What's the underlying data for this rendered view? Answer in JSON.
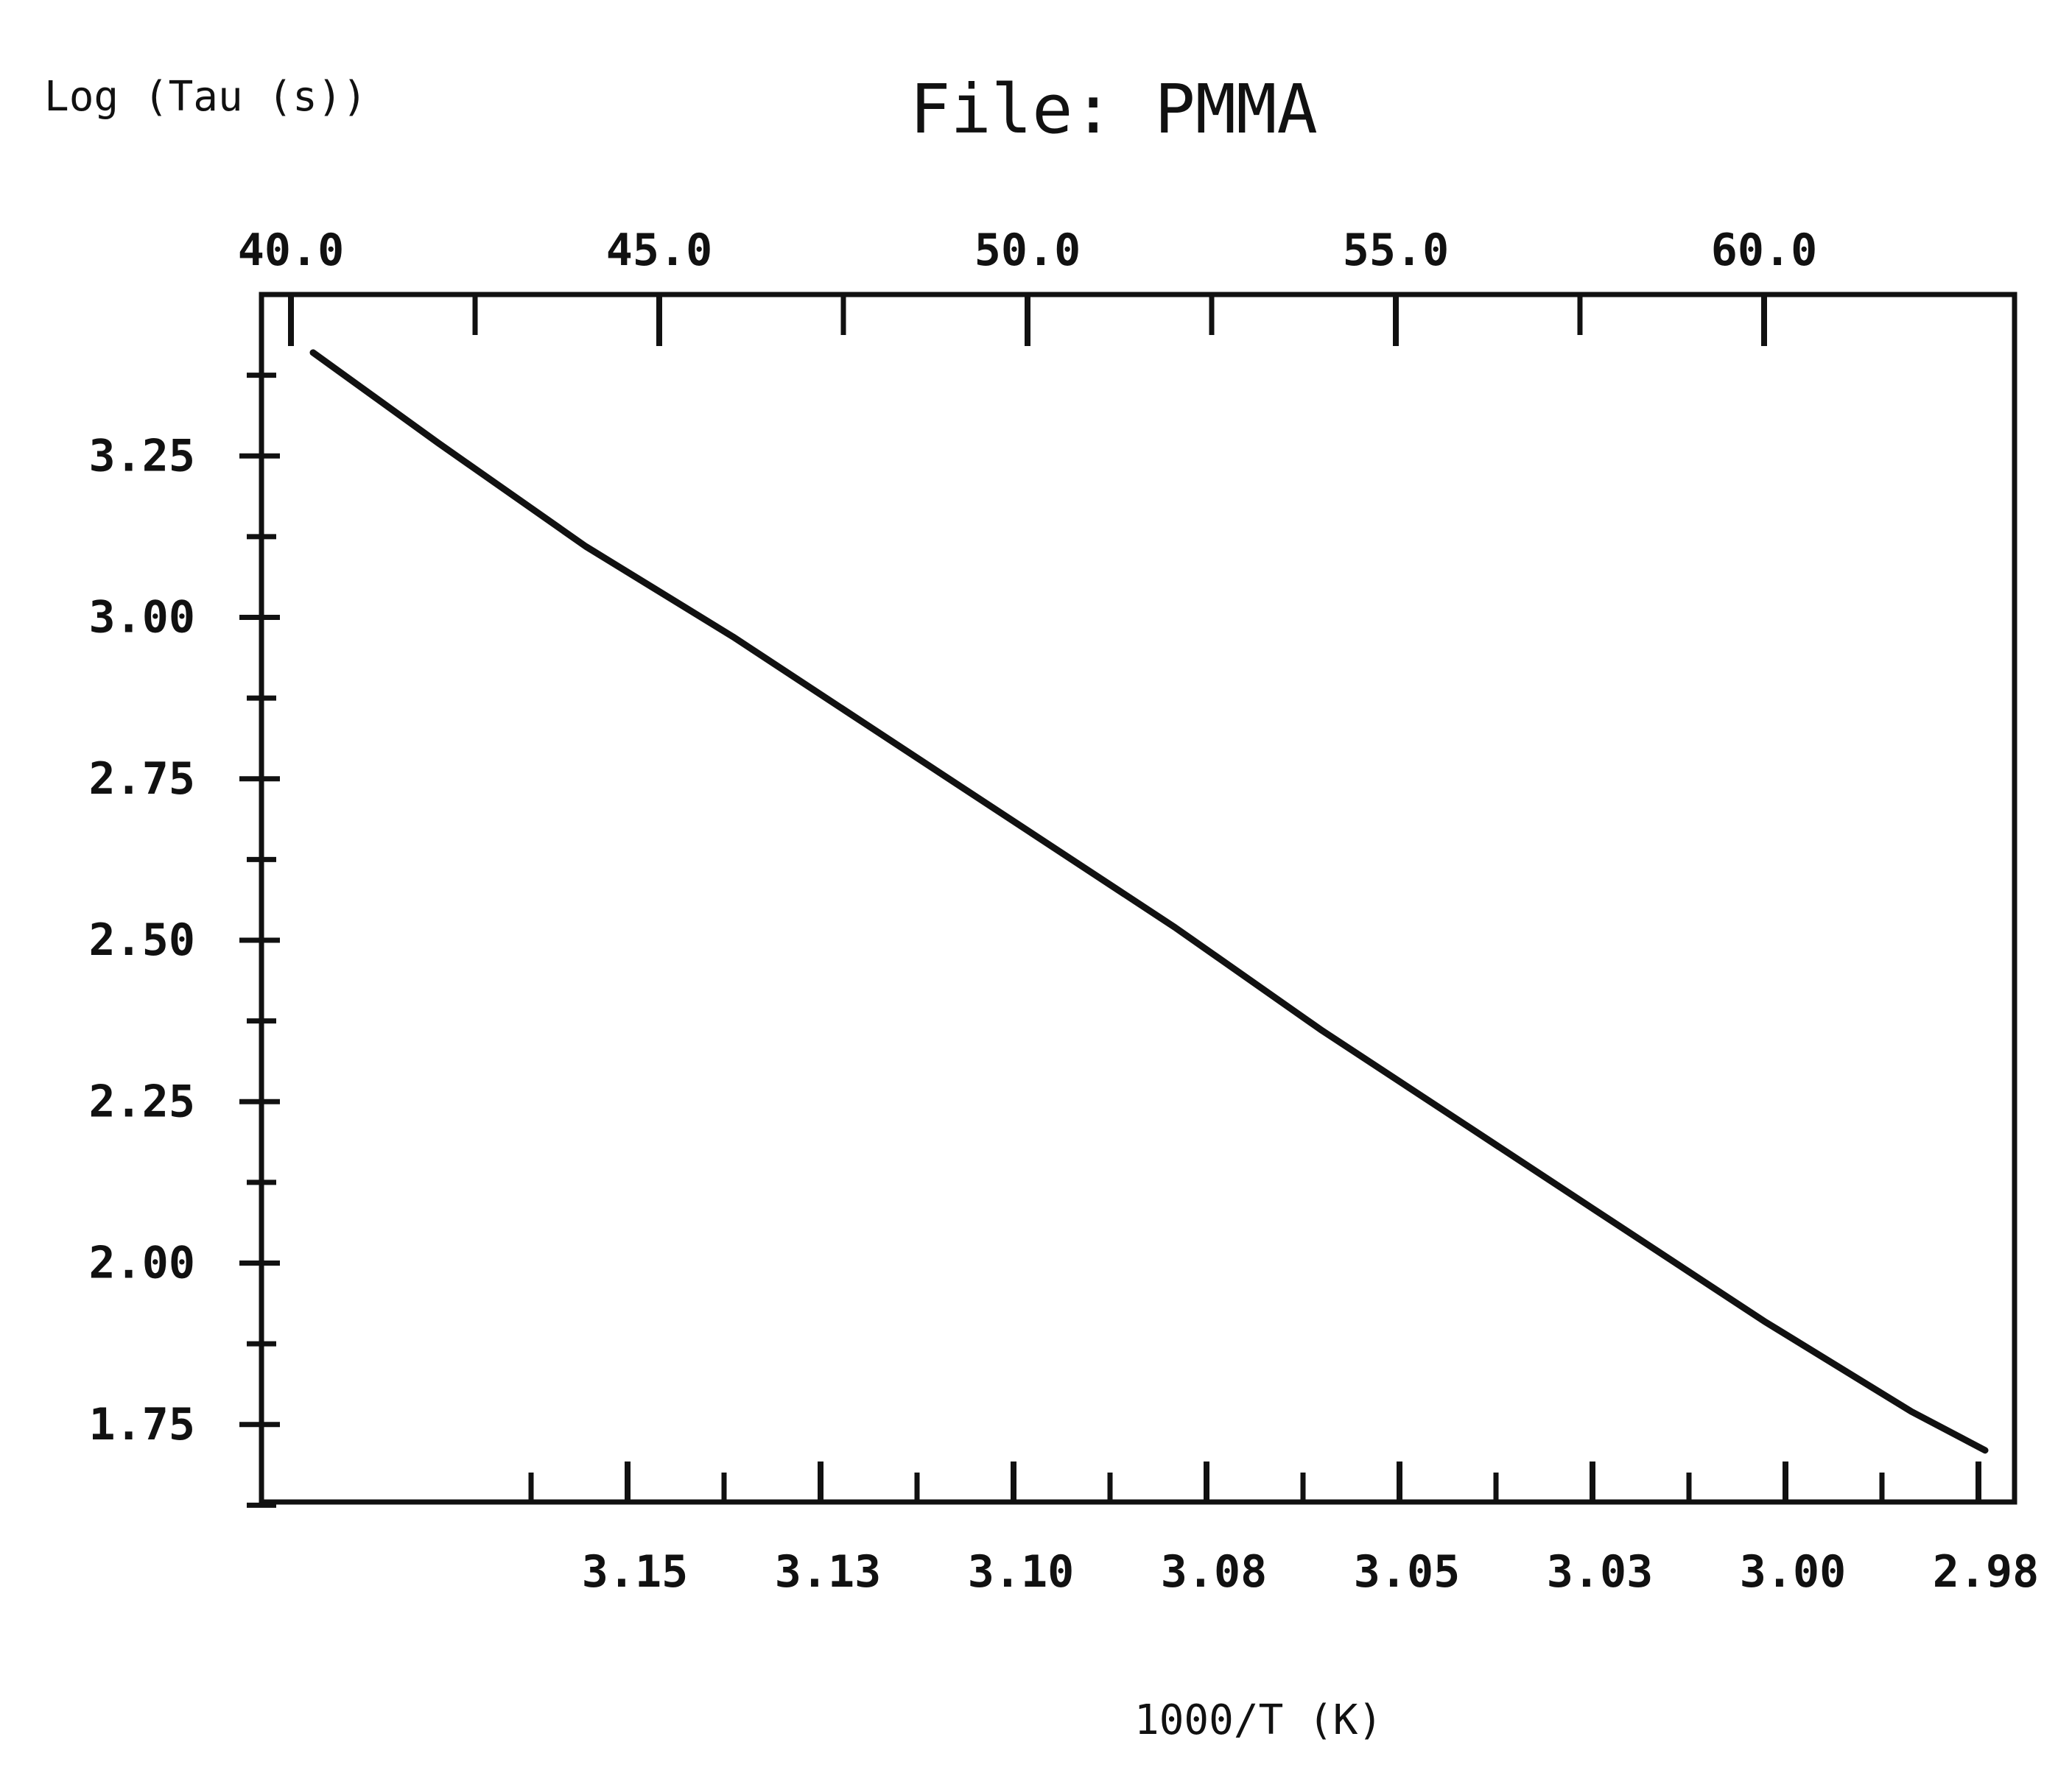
{
  "chart_data": {
    "type": "line",
    "title": "File:  PMMA",
    "ylabel": "Log (Tau (s))",
    "xlabel": "1000/T  (K)",
    "top_axis_ticks": [
      "40.0",
      "45.0",
      "50.0",
      "55.0",
      "60.0"
    ],
    "top_axis_values": [
      40.0,
      45.0,
      50.0,
      55.0,
      60.0
    ],
    "bottom_axis_ticks": [
      "3.15",
      "3.13",
      "3.10",
      "3.08",
      "3.05",
      "3.03",
      "3.00",
      "2.98"
    ],
    "y_ticks": [
      "3.25",
      "3.00",
      "2.75",
      "2.50",
      "2.25",
      "2.00",
      "1.75"
    ],
    "y_values": [
      3.25,
      3.0,
      2.75,
      2.5,
      2.25,
      2.0,
      1.75
    ],
    "ylim": [
      1.63,
      3.5
    ],
    "top_xlim": [
      39.6,
      63.4
    ],
    "grid": false,
    "legend": "none",
    "series": [
      {
        "top_x": [
          40.3,
          42.0,
          44.0,
          46.0,
          48.0,
          50.0,
          52.0,
          54.0,
          56.0,
          58.0,
          60.0,
          62.0,
          63.0
        ],
        "y": [
          3.41,
          3.27,
          3.11,
          2.97,
          2.82,
          2.67,
          2.52,
          2.36,
          2.21,
          2.06,
          1.91,
          1.77,
          1.71
        ]
      }
    ]
  }
}
